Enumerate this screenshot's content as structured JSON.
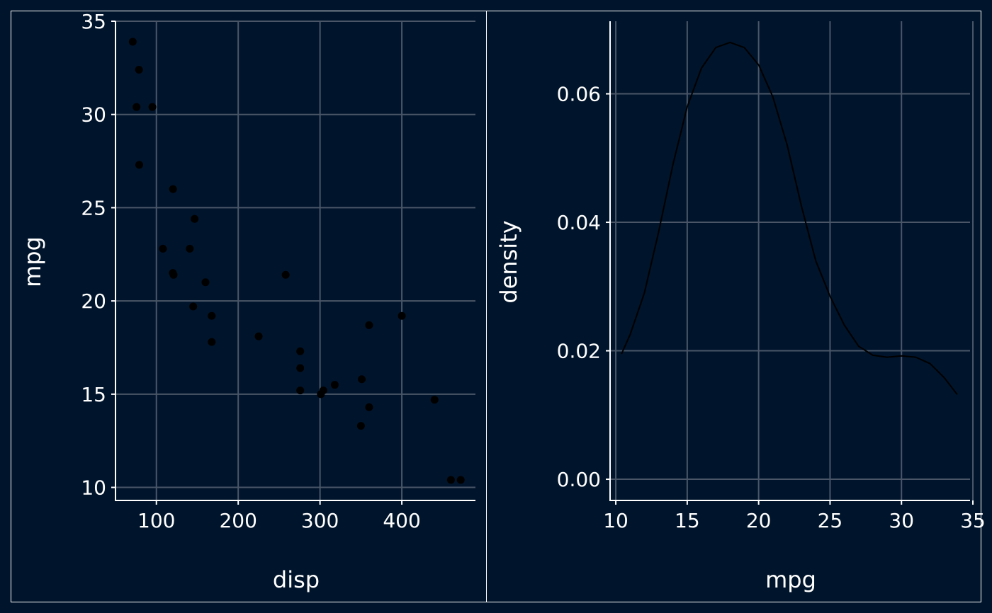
{
  "colors": {
    "background": "#00142b",
    "panel": "#001429",
    "grid": "#4a5668",
    "axis": "#ffffff",
    "text": "#ffffff",
    "marks": "#000000"
  },
  "chart_data": [
    {
      "type": "scatter",
      "xlabel": "disp",
      "ylabel": "mpg",
      "xlim": [
        50,
        490
      ],
      "ylim": [
        9.3,
        35
      ],
      "xticks": [
        100,
        200,
        300,
        400
      ],
      "yticks": [
        10,
        15,
        20,
        25,
        30,
        35
      ],
      "grid": true,
      "points": [
        {
          "x": 71.1,
          "y": 33.9
        },
        {
          "x": 78.7,
          "y": 32.4
        },
        {
          "x": 75.7,
          "y": 30.4
        },
        {
          "x": 95.1,
          "y": 30.4
        },
        {
          "x": 79.0,
          "y": 27.3
        },
        {
          "x": 120.3,
          "y": 26.0
        },
        {
          "x": 146.7,
          "y": 24.4
        },
        {
          "x": 108.0,
          "y": 22.8
        },
        {
          "x": 140.8,
          "y": 22.8
        },
        {
          "x": 120.1,
          "y": 21.5
        },
        {
          "x": 121.0,
          "y": 21.4
        },
        {
          "x": 258.0,
          "y": 21.4
        },
        {
          "x": 160.0,
          "y": 21.0
        },
        {
          "x": 145.0,
          "y": 19.7
        },
        {
          "x": 167.6,
          "y": 19.2
        },
        {
          "x": 400.0,
          "y": 19.2
        },
        {
          "x": 360.0,
          "y": 18.7
        },
        {
          "x": 225.0,
          "y": 18.1
        },
        {
          "x": 167.6,
          "y": 17.8
        },
        {
          "x": 275.8,
          "y": 17.3
        },
        {
          "x": 275.8,
          "y": 16.4
        },
        {
          "x": 318.0,
          "y": 15.5
        },
        {
          "x": 351.0,
          "y": 15.8
        },
        {
          "x": 304.0,
          "y": 15.2
        },
        {
          "x": 275.8,
          "y": 15.2
        },
        {
          "x": 301.0,
          "y": 15.0
        },
        {
          "x": 440.0,
          "y": 14.7
        },
        {
          "x": 360.0,
          "y": 14.3
        },
        {
          "x": 350.0,
          "y": 13.3
        },
        {
          "x": 460.0,
          "y": 10.4
        },
        {
          "x": 472.0,
          "y": 10.4
        }
      ]
    },
    {
      "type": "line",
      "xlabel": "mpg",
      "ylabel": "density",
      "xlim": [
        9.6,
        34.8
      ],
      "ylim": [
        -0.0033,
        0.0713
      ],
      "xticks": [
        10,
        15,
        20,
        25,
        30,
        35
      ],
      "yticks": [
        "0.00",
        "0.02",
        "0.04",
        "0.06"
      ],
      "grid": true,
      "points": [
        {
          "x": 10.4,
          "y": 0.0195
        },
        {
          "x": 11.0,
          "y": 0.0225
        },
        {
          "x": 12.0,
          "y": 0.029
        },
        {
          "x": 13.0,
          "y": 0.0385
        },
        {
          "x": 14.0,
          "y": 0.049
        },
        {
          "x": 15.0,
          "y": 0.058
        },
        {
          "x": 16.0,
          "y": 0.064
        },
        {
          "x": 17.0,
          "y": 0.0672
        },
        {
          "x": 18.0,
          "y": 0.068
        },
        {
          "x": 19.0,
          "y": 0.0672
        },
        {
          "x": 20.0,
          "y": 0.0645
        },
        {
          "x": 21.0,
          "y": 0.0595
        },
        {
          "x": 22.0,
          "y": 0.052
        },
        {
          "x": 23.0,
          "y": 0.0425
        },
        {
          "x": 24.0,
          "y": 0.034
        },
        {
          "x": 25.0,
          "y": 0.0285
        },
        {
          "x": 26.0,
          "y": 0.024
        },
        {
          "x": 27.0,
          "y": 0.0207
        },
        {
          "x": 28.0,
          "y": 0.0193
        },
        {
          "x": 29.0,
          "y": 0.019
        },
        {
          "x": 30.0,
          "y": 0.0192
        },
        {
          "x": 31.0,
          "y": 0.019
        },
        {
          "x": 32.0,
          "y": 0.018
        },
        {
          "x": 33.0,
          "y": 0.0158
        },
        {
          "x": 33.9,
          "y": 0.0132
        }
      ]
    }
  ]
}
